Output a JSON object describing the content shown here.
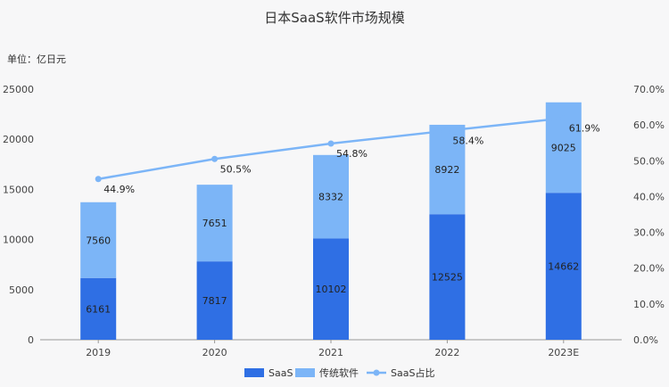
{
  "chart_data": {
    "type": "bar",
    "stacked": true,
    "title": "日本SaaS软件市场规模",
    "unit_label": "单位：亿日元",
    "categories": [
      "2019",
      "2020",
      "2021",
      "2022",
      "2023E"
    ],
    "series": [
      {
        "name": "SaaS",
        "values": [
          6161,
          7817,
          10102,
          12525,
          14662
        ],
        "color": "#2f6fe4"
      },
      {
        "name": "传统软件",
        "values": [
          7560,
          7651,
          8332,
          8922,
          9025
        ],
        "color": "#7cb5f7"
      }
    ],
    "line_series": {
      "name": "SaaS占比",
      "values": [
        44.9,
        50.5,
        54.8,
        58.4,
        61.9
      ],
      "color": "#7cb5f7",
      "axis": "right"
    },
    "ylim_left": [
      0,
      25000
    ],
    "yticks_left": [
      "0",
      "5000",
      "10000",
      "15000",
      "20000",
      "25000"
    ],
    "ylim_right": [
      0,
      70
    ],
    "yticks_right": [
      "0.0%",
      "10.0%",
      "20.0%",
      "30.0%",
      "40.0%",
      "50.0%",
      "60.0%",
      "70.0%"
    ],
    "legend": [
      "SaaS",
      "传统软件",
      "SaaS占比"
    ],
    "legend_position": "bottom",
    "grid": false
  }
}
